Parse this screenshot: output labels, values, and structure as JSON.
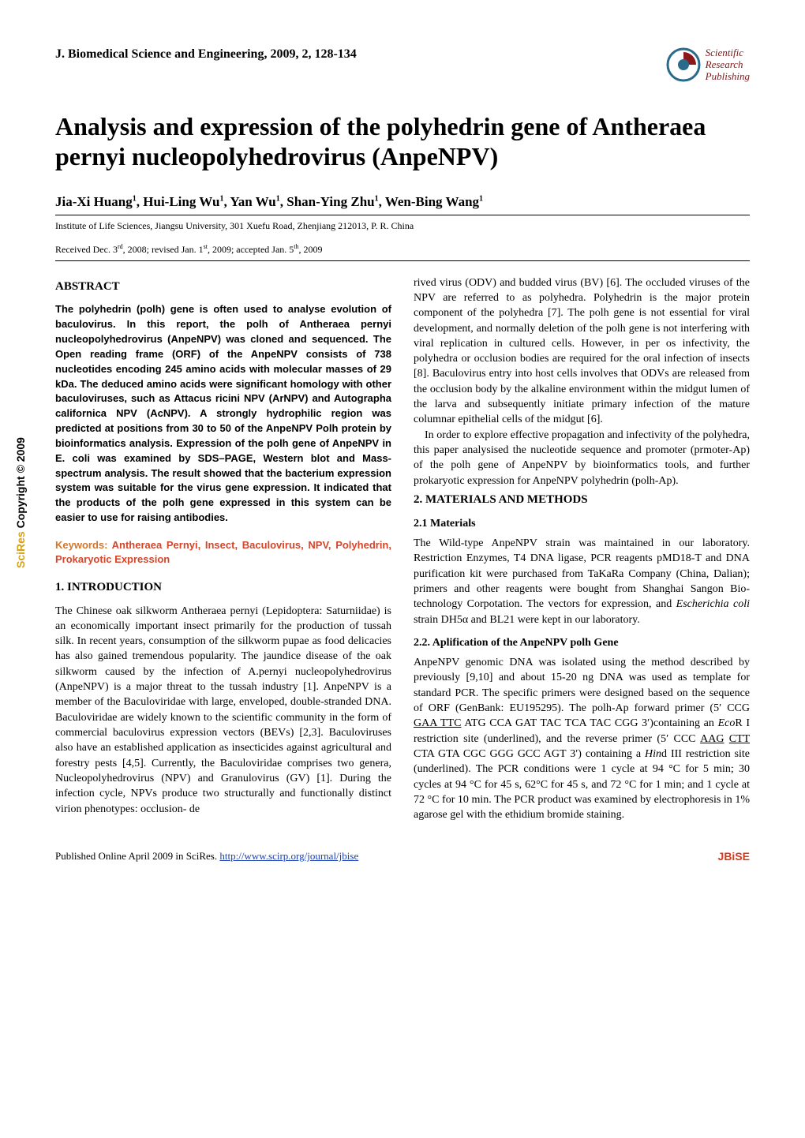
{
  "sidebar": {
    "scires": "SciRes",
    "copyright": "Copyright © 2009"
  },
  "header": {
    "journal": "J. Biomedical Science and Engineering, 2009, 2, 128-134",
    "logo_text_line1": "Scientific",
    "logo_text_line2": "Research",
    "logo_text_line3": "Publishing",
    "logo_colors": {
      "outer": "#2a6a8a",
      "inner": "#8a1a1a",
      "text": "#7a1a1a"
    }
  },
  "title": "Analysis and expression of the polyhedrin gene of Antheraea pernyi nucleopolyhedrovirus (AnpeNPV)",
  "authors_html": "Jia-Xi Huang<sup>1</sup>, Hui-Ling Wu<sup>1</sup>, Yan Wu<sup>1</sup>, Shan-Ying Zhu<sup>1</sup>, Wen-Bing Wang<sup>1</sup>",
  "affiliation": "Institute of Life Sciences, Jiangsu University, 301 Xuefu Road, Zhenjiang 212013, P. R. China",
  "dates_html": "Received Dec. 3<sup>rd</sup>, 2008; revised Jan. 1<sup>st</sup>, 2009; accepted Jan. 5<sup>th</sup>, 2009",
  "abstract": {
    "heading": "ABSTRACT",
    "body": "The polyhedrin (polh) gene is often used to analyse evolution of baculovirus. In this report, the polh of Antheraea pernyi nucleopolyhedrovirus (AnpeNPV) was cloned and sequenced. The Open reading frame (ORF) of the AnpeNPV consists of 738 nucleotides encoding 245 amino acids with molecular masses of 29 kDa. The deduced amino acids were significant homology with other baculoviruses, such as Attacus ricini NPV (ArNPV) and Autographa californica NPV (AcNPV). A strongly hydrophilic region was predicted at positions from 30 to 50 of the AnpeNPV Polh protein by bioinformatics analysis. Expression of the polh gene of AnpeNPV in E. coli was examined by SDS–PAGE, Western blot and Mass-spectrum analysis. The result showed that the bacterium expression system was suitable for the virus gene expression. It indicated that the products of the polh gene expressed in this system can be easier to use for raising antibodies."
  },
  "keywords": {
    "label": "Keywords:",
    "body": "Antheraea Pernyi, Insect, Baculovirus, NPV, Polyhedrin, Prokaryotic Expression"
  },
  "sections": {
    "intro": {
      "heading": "1. INTRODUCTION",
      "para1": "The Chinese oak silkworm Antheraea pernyi (Lepidoptera: Saturniidae) is an economically important insect primarily for the production of tussah silk. In recent years, consumption of the silkworm pupae as food delicacies has also gained tremendous popularity. The jaundice disease of the oak silkworm caused by the infection of A.pernyi nucleopolyhedrovirus (AnpeNPV) is a major threat to the tussah industry [1]. AnpeNPV is a member of the Baculoviridae with large, enveloped, double-stranded DNA. Baculoviridae are widely known to the scientific community in the form of commercial baculovirus expression vectors (BEVs) [2,3]. Baculoviruses also have an established application as insecticides against agricultural and forestry pests [4,5]. Currently, the Baculoviridae comprises two genera, Nucleopolyhedrovirus (NPV) and Granulovirus (GV) [1]. During the infection cycle, NPVs produce two structurally and functionally distinct virion phenotypes: occlusion- de",
      "para1b": "rived virus (ODV) and budded virus (BV) [6]. The occluded viruses of the NPV are referred to as polyhedra. Polyhedrin is the major protein component of the polyhedra [7]. The polh gene is not essential for viral development, and normally deletion of the polh gene is not interfering with viral replication in cultured cells. However, in per os infectivity, the polyhedra or occlusion bodies are required for the oral infection of insects [8]. Baculovirus entry into host cells involves that ODVs are released from the occlusion body by the alkaline environment within the midgut lumen of the larva and subsequently initiate primary infection of the mature columnar epithelial cells of the midgut [6].",
      "para2": "In order to explore effective propagation and infectivity of the polyhedra, this paper analysised the nucleotide sequence and promoter (prmoter-Ap) of the polh gene of AnpeNPV by bioinformatics tools, and further prokaryotic expression for AnpeNPV polyhedrin (polh-Ap)."
    },
    "methods": {
      "heading": "2. MATERIALS AND METHODS",
      "sub1": {
        "heading": "2.1 Materials",
        "body_html": "The Wild-type AnpeNPV strain was maintained in our laboratory. Restriction Enzymes, T4 DNA ligase, PCR reagents pMD18-T and DNA purification kit were purchased from TaKaRa Company (China, Dalian); primers and other reagents were bought from Shanghai Sangon Bio-technology Corpotation. The vectors for expression, and <span class=\"italic\">Escherichia coli</span> strain DH5α and BL21 were kept in our laboratory."
      },
      "sub2": {
        "heading": "2.2. Aplification of the AnpeNPV polh Gene",
        "body_html": "AnpeNPV genomic DNA was isolated using the method described by previously [9,10] and about 15-20 ng DNA was used as template for standard PCR. The specific primers were designed based on the sequence of ORF (GenBank: EU195295). The polh-Ap forward primer (5&prime; CCG <span class=\"underline\">GAA TTC</span> ATG CCA GAT TAC TCA TAC CGG 3&prime;)containing an <span class=\"italic\">Eco</span>R I restriction site (underlined), and the reverse primer (5&prime; CCC <span class=\"underline\">AAG</span> <span class=\"underline\">CTT</span> CTA GTA CGC GGG GCC AGT 3&prime;) containing a <span class=\"italic\">Hin</span>d III restriction site (underlined). The PCR conditions were 1 cycle at 94 °C for 5 min; 30 cycles at 94 °C for 45 s, 62°C for 45 s, and 72 °C for 1 min; and 1 cycle at 72 °C for 10 min. The PCR product was examined by electrophoresis in 1% agarose gel with the ethidium bromide staining."
      }
    }
  },
  "footer": {
    "pub_text": "Published Online April 2009 in SciRes. ",
    "pub_url": "http://www.scirp.org/journal/jbise",
    "jbise": "JBiSE"
  }
}
